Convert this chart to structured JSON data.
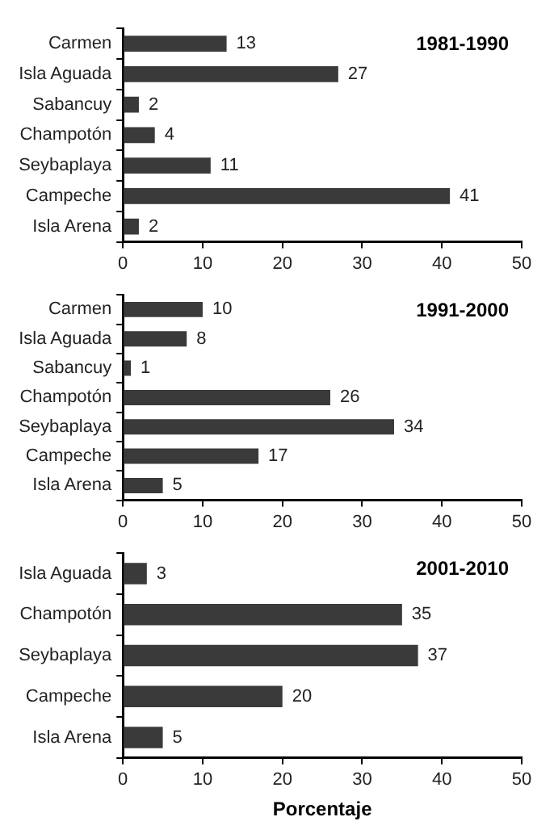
{
  "chart_data": [
    {
      "type": "bar",
      "orientation": "horizontal",
      "title": "1981-1990",
      "categories": [
        "Carmen",
        "Isla Aguada",
        "Sabancuy",
        "Champotón",
        "Seybaplaya",
        "Campeche",
        "Isla Arena"
      ],
      "values": [
        13,
        27,
        2,
        4,
        11,
        41,
        2
      ],
      "color": "#3a3a3a",
      "xlim": [
        0,
        50
      ],
      "xticks": [
        0,
        10,
        20,
        30,
        40,
        50
      ],
      "data_labels": true,
      "grid": false,
      "legend": false
    },
    {
      "type": "bar",
      "orientation": "horizontal",
      "title": "1991-2000",
      "categories": [
        "Carmen",
        "Isla Aguada",
        "Sabancuy",
        "Champotón",
        "Seybaplaya",
        "Campeche",
        "Isla Arena"
      ],
      "values": [
        10,
        8,
        1,
        26,
        34,
        17,
        5
      ],
      "color": "#3a3a3a",
      "xlim": [
        0,
        50
      ],
      "xticks": [
        0,
        10,
        20,
        30,
        40,
        50
      ],
      "data_labels": true,
      "grid": false,
      "legend": false
    },
    {
      "type": "bar",
      "orientation": "horizontal",
      "title": "2001-2010",
      "xlabel": "Porcentaje",
      "categories": [
        "Isla Aguada",
        "Champotón",
        "Seybaplaya",
        "Campeche",
        "Isla Arena"
      ],
      "values": [
        3,
        35,
        37,
        20,
        5
      ],
      "color": "#3a3a3a",
      "xlim": [
        0,
        50
      ],
      "xticks": [
        0,
        10,
        20,
        30,
        40,
        50
      ],
      "data_labels": true,
      "grid": false,
      "legend": false
    }
  ]
}
